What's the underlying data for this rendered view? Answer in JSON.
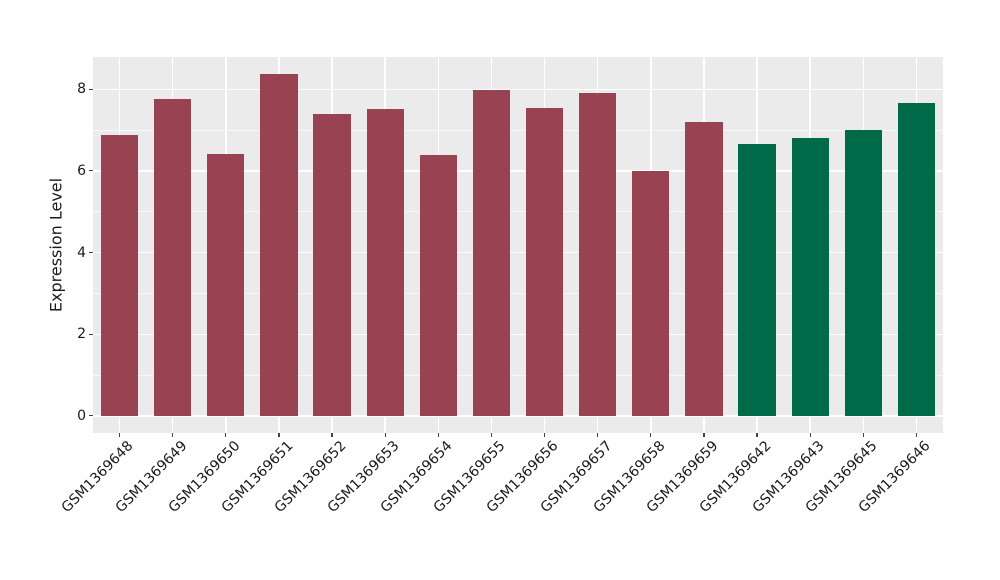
{
  "figure": {
    "background": "#ffffff",
    "panel_background": "#ebebeb",
    "gridline_color": "#ffffff",
    "tick_color": "#444444",
    "text_color": "#1a1a1a"
  },
  "chart_data": {
    "type": "bar",
    "title": "",
    "xlabel": "",
    "ylabel": "Expression Level",
    "categories": [
      "GSM1369648",
      "GSM1369649",
      "GSM1369650",
      "GSM1369651",
      "GSM1369652",
      "GSM1369653",
      "GSM1369654",
      "GSM1369655",
      "GSM1369656",
      "GSM1369657",
      "GSM1369658",
      "GSM1369659",
      "GSM1369642",
      "GSM1369643",
      "GSM1369645",
      "GSM1369646"
    ],
    "values": [
      6.88,
      7.77,
      6.42,
      8.38,
      7.4,
      7.52,
      6.4,
      7.99,
      7.53,
      7.9,
      6.0,
      7.19,
      6.67,
      6.81,
      6.99,
      7.67
    ],
    "bar_colors": [
      "#994352",
      "#994352",
      "#994352",
      "#994352",
      "#994352",
      "#994352",
      "#994352",
      "#994352",
      "#994352",
      "#994352",
      "#994352",
      "#994352",
      "#016a49",
      "#016a49",
      "#016a49",
      "#016a49"
    ],
    "color_groups": {
      "maroon": "#994352",
      "green": "#016a49"
    },
    "yticks": [
      0,
      2,
      4,
      6,
      8
    ],
    "yticks_minor": [
      1,
      3,
      5,
      7
    ],
    "ylim": [
      -0.42,
      8.79
    ],
    "grid": true,
    "legend": false,
    "x_tick_rotation_deg": 45,
    "bar_width_fraction": 0.7
  }
}
